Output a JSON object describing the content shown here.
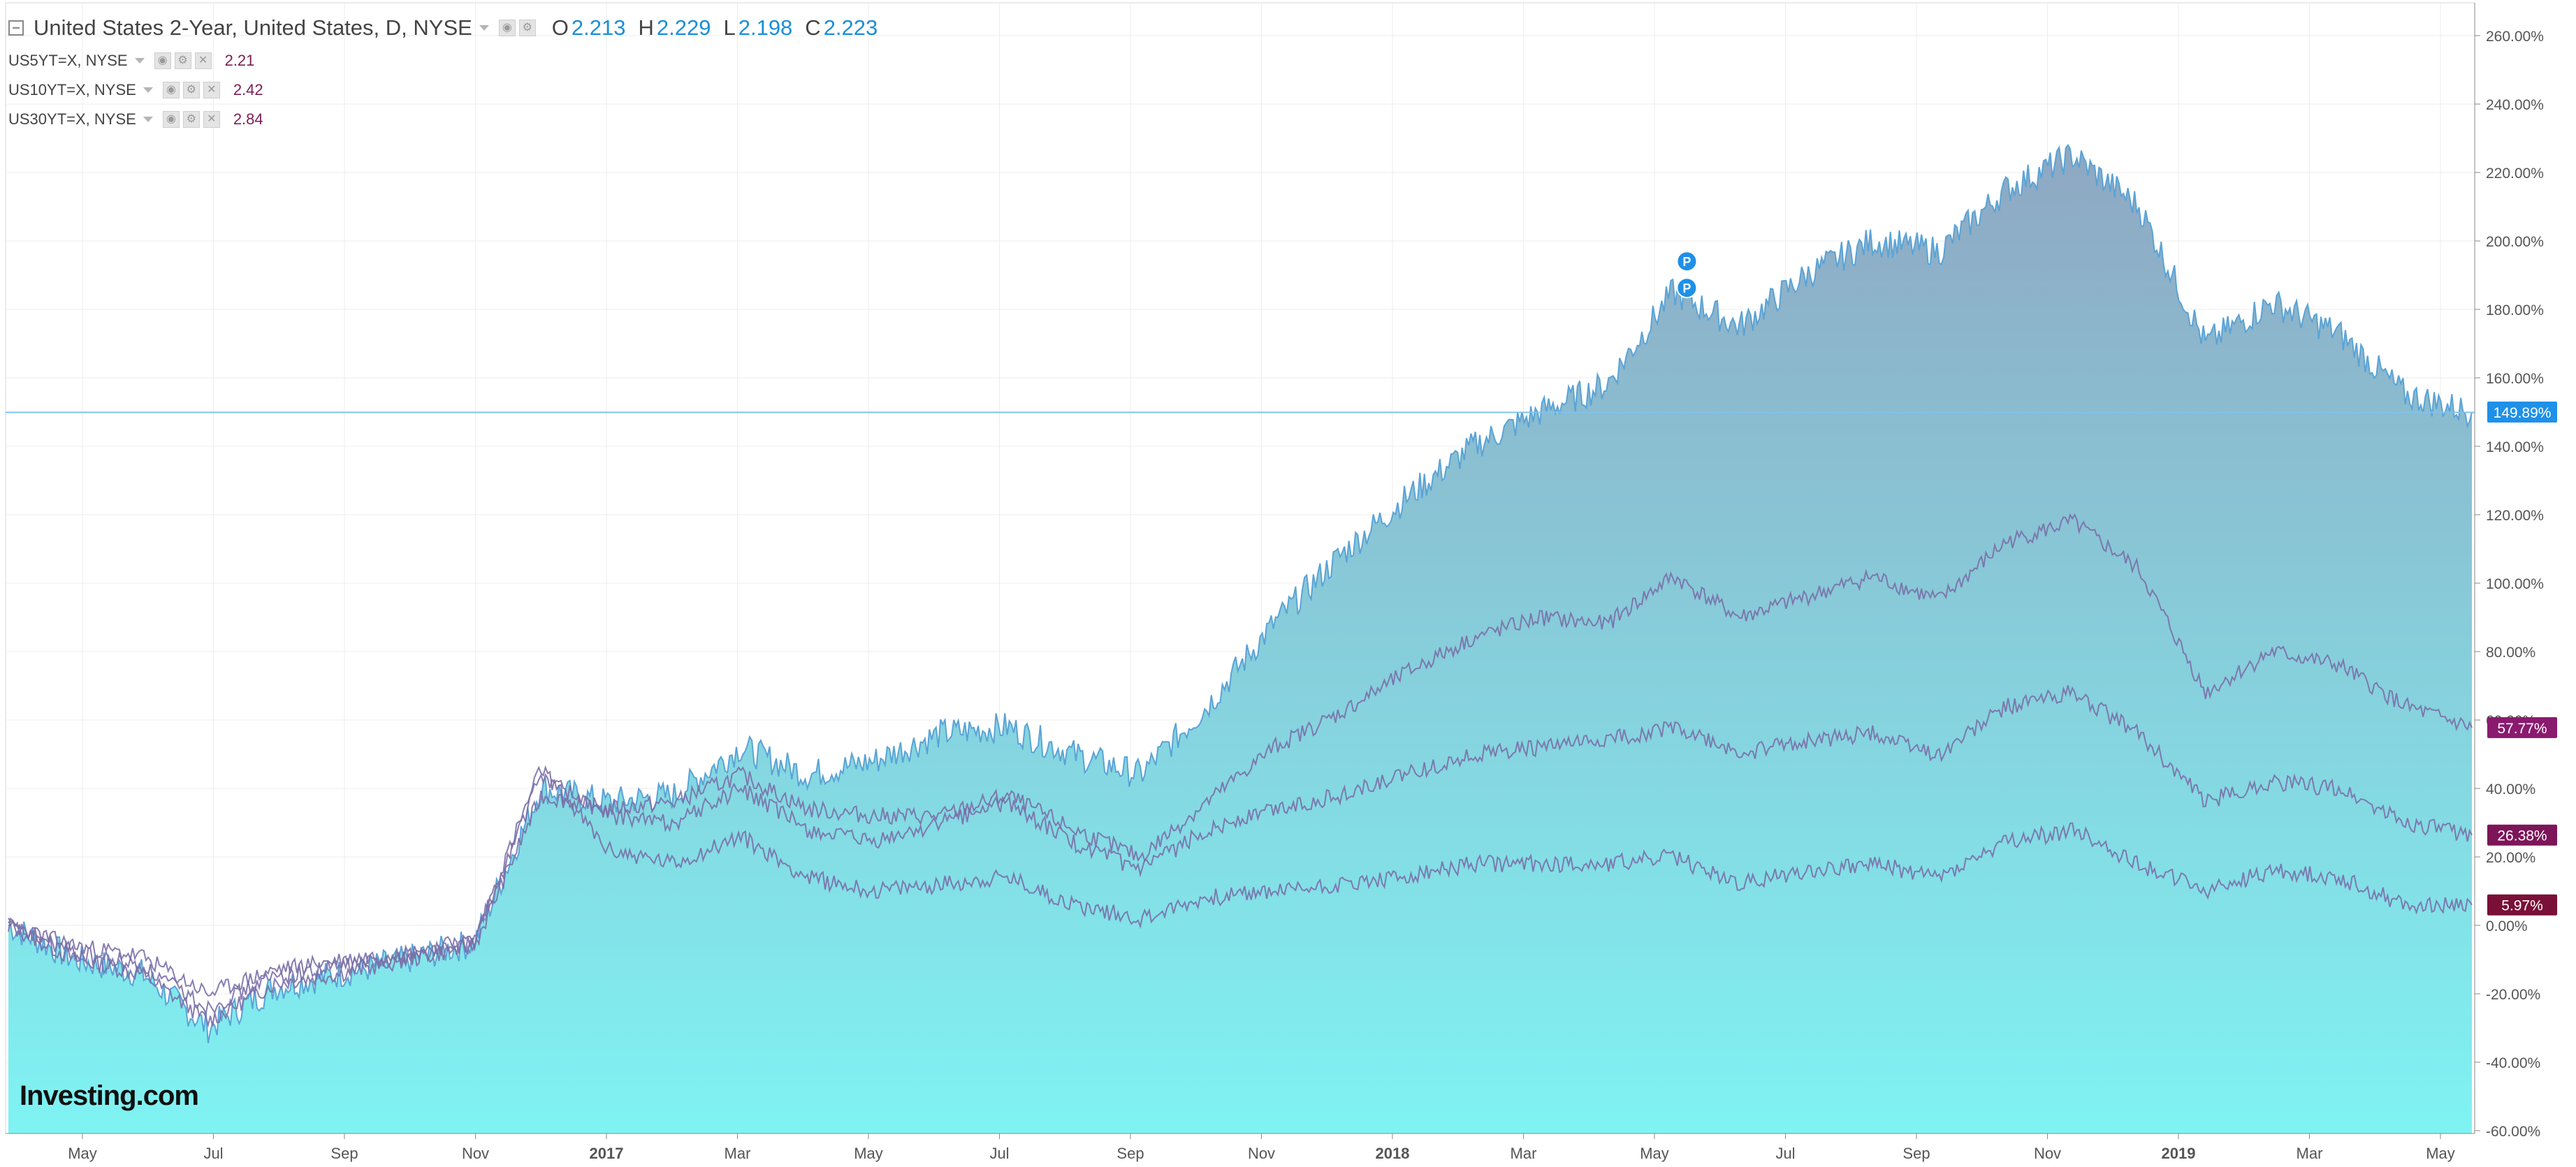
{
  "header": {
    "title": "United States 2-Year, United States, D, NYSE",
    "ohlc": [
      {
        "key": "O",
        "value": "2.213"
      },
      {
        "key": "H",
        "value": "2.229"
      },
      {
        "key": "L",
        "value": "2.198"
      },
      {
        "key": "C",
        "value": "2.223"
      }
    ]
  },
  "legend": [
    {
      "label": "US5YT=X, NYSE",
      "value": "2.21"
    },
    {
      "label": "US10YT=X, NYSE",
      "value": "2.42"
    },
    {
      "label": "US30YT=X, NYSE",
      "value": "2.84"
    }
  ],
  "watermark": "Investing.com",
  "colors": {
    "main_line": "#5aa3d6",
    "fill_top": "#8fa7c2",
    "fill_bottom": "#7ff3f3",
    "compare_lines": "#7a6fa8",
    "badge_main": "#1e90e8",
    "badge_5y": "#8a1a6e",
    "badge_10y": "#7d1559",
    "badge_30y": "#7a0f37",
    "grid": "#ececec"
  },
  "chart_data": {
    "type": "area",
    "title": "United States 2-Year",
    "yaxis_unit": "percent change",
    "ylim": [
      -60,
      260
    ],
    "y_ticks": [
      "260.00%",
      "240.00%",
      "220.00%",
      "200.00%",
      "180.00%",
      "160.00%",
      "140.00%",
      "120.00%",
      "100.00%",
      "80.00%",
      "60.00%",
      "40.00%",
      "20.00%",
      "0.00%",
      "-20.00%",
      "-40.00%",
      "-60.00%"
    ],
    "x_ticks": [
      "May",
      "Jul",
      "Sep",
      "Nov",
      "2017",
      "Mar",
      "May",
      "Jul",
      "Sep",
      "Nov",
      "2018",
      "Mar",
      "May",
      "Jul",
      "Sep",
      "Nov",
      "2019",
      "Mar",
      "May"
    ],
    "x_tick_bold": [
      false,
      false,
      false,
      false,
      true,
      false,
      false,
      false,
      false,
      false,
      true,
      false,
      false,
      false,
      false,
      false,
      true,
      false,
      false
    ],
    "x": [
      "2016-04",
      "2016-05",
      "2016-06",
      "2016-07",
      "2016-08",
      "2016-09",
      "2016-10",
      "2016-11",
      "2016-12",
      "2017-01",
      "2017-02",
      "2017-03",
      "2017-04",
      "2017-05",
      "2017-06",
      "2017-07",
      "2017-08",
      "2017-09",
      "2017-10",
      "2017-11",
      "2017-12",
      "2018-01",
      "2018-02",
      "2018-03",
      "2018-04",
      "2018-05",
      "2018-06",
      "2018-07",
      "2018-08",
      "2018-09",
      "2018-10",
      "2018-11",
      "2018-12",
      "2019-01",
      "2019-02",
      "2019-03",
      "2019-04",
      "2019-05"
    ],
    "series": [
      {
        "name": "United States 2-Year, United States, D, NYSE",
        "values": [
          0,
          -10,
          -14,
          -30,
          -18,
          -14,
          -10,
          -5,
          40,
          36,
          38,
          52,
          44,
          48,
          56,
          58,
          50,
          44,
          64,
          88,
          108,
          125,
          140,
          150,
          158,
          185,
          175,
          190,
          200,
          197,
          215,
          225,
          210,
          170,
          182,
          173,
          155,
          150
        ],
        "last_label": "149.89%"
      },
      {
        "name": "US5YT=X, NYSE",
        "values": [
          0,
          -10,
          -14,
          -28,
          -17,
          -14,
          -10,
          -6,
          38,
          34,
          36,
          44,
          34,
          32,
          32,
          38,
          28,
          20,
          36,
          52,
          62,
          74,
          84,
          90,
          88,
          102,
          90,
          96,
          102,
          95,
          112,
          118,
          104,
          68,
          80,
          76,
          64,
          57.77
        ],
        "last_label": "57.77%"
      },
      {
        "name": "US10YT=X, NYSE",
        "values": [
          0,
          -8,
          -12,
          -24,
          -15,
          -12,
          -9,
          -5,
          44,
          32,
          30,
          40,
          28,
          24,
          30,
          36,
          24,
          16,
          28,
          34,
          38,
          44,
          50,
          52,
          54,
          58,
          50,
          54,
          56,
          50,
          64,
          68,
          56,
          36,
          42,
          40,
          30,
          26.38
        ],
        "last_label": "26.38%"
      },
      {
        "name": "US30YT=X, NYSE",
        "values": [
          0,
          -6,
          -9,
          -20,
          -13,
          -10,
          -8,
          -4,
          46,
          22,
          18,
          26,
          14,
          10,
          12,
          14,
          6,
          2,
          8,
          10,
          12,
          14,
          18,
          18,
          18,
          20,
          12,
          16,
          18,
          14,
          24,
          28,
          18,
          10,
          16,
          14,
          6,
          5.97
        ],
        "last_label": "5.97%"
      }
    ],
    "markers": [
      "P",
      "P"
    ],
    "crosshair_value": 149.89,
    "grid": true,
    "legend_position": "top-left"
  }
}
